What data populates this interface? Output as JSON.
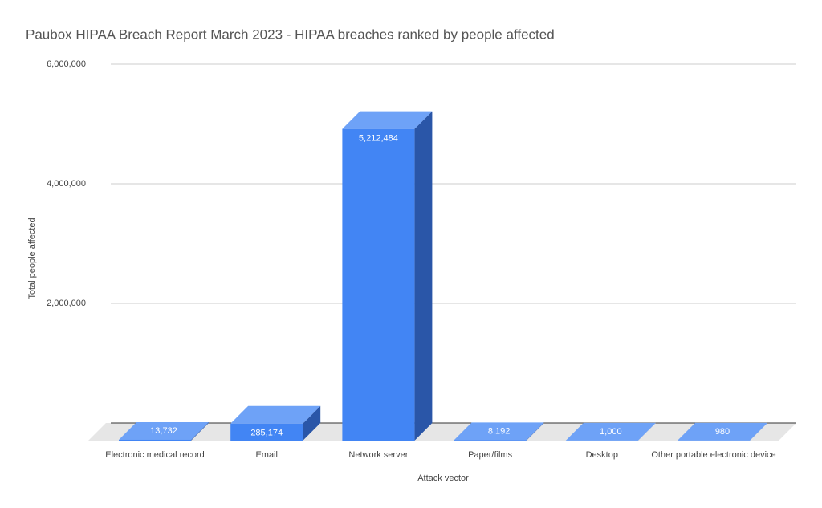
{
  "chart_data": {
    "type": "bar3d",
    "title": "Paubox HIPAA Breach Report March 2023 - HIPAA breaches ranked by people affected",
    "x_label": "Attack vector",
    "y_label": "Total people affected",
    "categories": [
      "Electronic medical record",
      "Email",
      "Network server",
      "Paper/films",
      "Desktop",
      "Other portable electronic device"
    ],
    "values": [
      13732,
      285174,
      5212484,
      8192,
      1000,
      980
    ],
    "value_labels": [
      "13,732",
      "285,174",
      "5,212,484",
      "8,192",
      "1,000",
      "980"
    ],
    "color": "#4285f4",
    "ylim": [
      0,
      6000000
    ],
    "yticks": [
      {
        "value": 2000000,
        "label": "2,000,000"
      },
      {
        "value": 4000000,
        "label": "4,000,000"
      },
      {
        "value": 6000000,
        "label": "6,000,000"
      }
    ],
    "grid": true
  }
}
